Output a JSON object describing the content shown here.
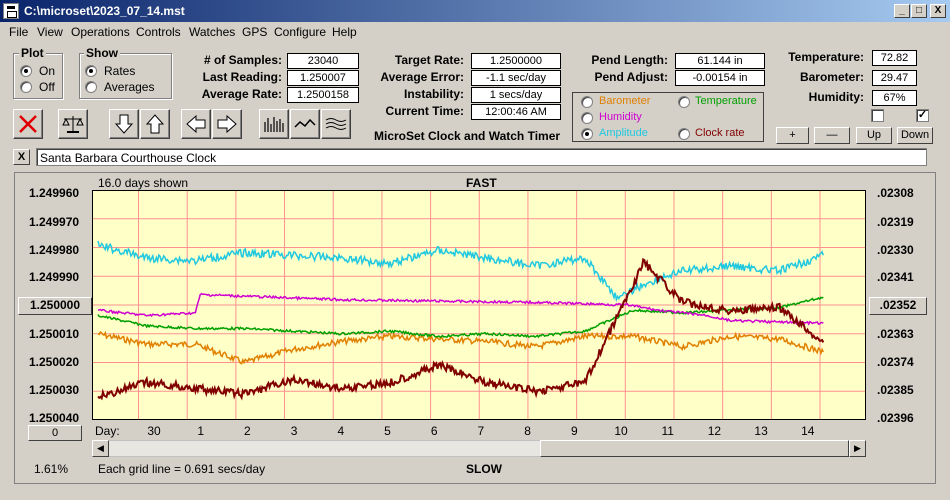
{
  "window": {
    "title": "C:\\microset\\2023_07_14.mst",
    "minimize": "_",
    "maximize": "□",
    "close": "X"
  },
  "menu": [
    "File",
    "View",
    "Operations",
    "Controls",
    "Watches",
    "GPS",
    "Configure",
    "Help"
  ],
  "plot": {
    "title": "Plot",
    "options": [
      "On",
      "Off"
    ],
    "selected": "On"
  },
  "show": {
    "title": "Show",
    "options": [
      "Rates",
      "Averages"
    ],
    "selected": "Rates"
  },
  "stats": {
    "samples_label": "# of Samples:",
    "samples": "23040",
    "last_label": "Last Reading:",
    "last": "1.250007",
    "avg_label": "Average Rate:",
    "avg": "1.2500158"
  },
  "rates": {
    "target_label": "Target Rate:",
    "target": "1.2500000",
    "error_label": "Average Error:",
    "error": "-1.1 sec/day",
    "instab_label": "Instability:",
    "instab": "1 secs/day",
    "time_label": "Current Time:",
    "time": "12:00:46 AM"
  },
  "app_name": "MicroSet Clock and Watch Timer",
  "pend": {
    "length_label": "Pend Length:",
    "length": "61.144 in",
    "adjust_label": "Pend Adjust:",
    "adjust": "-0.00154 in"
  },
  "sensors": {
    "temp_label": "Temperature:",
    "temp": "72.82",
    "baro_label": "Barometer:",
    "baro": "29.47",
    "hum_label": "Humidity:",
    "hum": "67%"
  },
  "series_select": {
    "options": [
      {
        "label": "Barometer",
        "color": "#e08000"
      },
      {
        "label": "Temperature",
        "color": "#00a000"
      },
      {
        "label": "Humidity",
        "color": "#d000d0"
      },
      {
        "label": "Amplitude",
        "color": "#20c8e0"
      },
      {
        "label": "Clock rate",
        "color": "#800000"
      }
    ],
    "selected": "Amplitude"
  },
  "adjust_buttons": [
    "+",
    "—",
    "Up",
    "Down"
  ],
  "checkboxes": [
    {
      "checked": false
    },
    {
      "checked": true
    }
  ],
  "description": {
    "close": "X",
    "value": "Santa Barbara Courthouse Clock"
  },
  "chart": {
    "days_shown": "16.0 days shown",
    "fast": "FAST",
    "slow": "SLOW",
    "reference_btn": "1.250000",
    "zero_btn": "0",
    "right_btn": ".02352",
    "percent": "1.61%",
    "grid_note": "Each grid line = 0.691 secs/day",
    "day_label": "Day:",
    "left_ticks": [
      "1.249960",
      "1.249970",
      "1.249980",
      "1.249990",
      "1.250000",
      "1.250010",
      "1.250020",
      "1.250030",
      "1.250040"
    ],
    "right_ticks": [
      ".02308",
      ".02319",
      ".02330",
      ".02341",
      ".02352",
      ".02363",
      ".02374",
      ".02385",
      ".02396"
    ],
    "day_ticks": [
      "30",
      "1",
      "2",
      "3",
      "4",
      "5",
      "6",
      "7",
      "8",
      "9",
      "10",
      "11",
      "12",
      "13",
      "14"
    ],
    "bg_color": "#ffffc8",
    "grid_color": "#ff9090"
  },
  "chart_data": {
    "type": "line",
    "x_label": "Day",
    "y_range_left": [
      1.24996,
      1.25004
    ],
    "y_range_right": [
      0.02308,
      0.02396
    ],
    "x_range_days": [
      0,
      16
    ],
    "series": [
      {
        "name": "Clock rate",
        "color": "#800000",
        "x": [
          0,
          1,
          2,
          3,
          4,
          5,
          6,
          7,
          8,
          9,
          10,
          11.05,
          11.2,
          12,
          13,
          14,
          14.9
        ],
        "y": [
          1.250032,
          1.250027,
          1.250029,
          1.250031,
          1.250026,
          1.250029,
          1.250027,
          1.250021,
          1.250027,
          1.25003,
          1.250027,
          1.249991,
          1.249985,
          1.249999,
          1.250002,
          1.250001,
          1.250013
        ]
      },
      {
        "name": "Barometer",
        "color": "#e08000",
        "x": [
          0,
          1,
          2,
          3,
          4,
          5,
          6,
          7,
          8,
          9,
          10,
          11,
          12,
          13,
          14,
          14.9
        ],
        "y": [
          0.02363,
          0.02367,
          0.02367,
          0.02374,
          0.02369,
          0.02366,
          0.02364,
          0.02365,
          0.02366,
          0.02368,
          0.02364,
          0.02364,
          0.02368,
          0.02364,
          0.02365,
          0.0237
        ]
      },
      {
        "name": "Temperature",
        "color": "#00a000",
        "x": [
          0,
          1,
          2,
          3,
          4,
          5,
          6,
          7,
          8,
          9,
          10,
          11,
          12,
          13,
          14,
          14.9
        ],
        "y": [
          0.02356,
          0.0236,
          0.02361,
          0.02361,
          0.02362,
          0.02363,
          0.02362,
          0.02364,
          0.02363,
          0.02364,
          0.02362,
          0.02354,
          0.02355,
          0.02354,
          0.02353,
          0.02349
        ]
      },
      {
        "name": "Humidity",
        "color": "#d000d0",
        "x": [
          0,
          1,
          2,
          2.1,
          5,
          9,
          10.9,
          11.5,
          12.5,
          13,
          14.9
        ],
        "y": [
          0.02354,
          0.02356,
          0.02355,
          0.02348,
          0.0235,
          0.02351,
          0.02352,
          0.02354,
          0.02356,
          0.02358,
          0.02359
        ]
      },
      {
        "name": "Amplitude",
        "color": "#20c8e0",
        "x": [
          0,
          1,
          2,
          3,
          4,
          5,
          6,
          7,
          8,
          9,
          10,
          10.7,
          11,
          11.5,
          12,
          13,
          14,
          14.9
        ],
        "y": [
          0.02329,
          0.02334,
          0.02335,
          0.02332,
          0.02333,
          0.02334,
          0.02336,
          0.02331,
          0.02334,
          0.02337,
          0.02334,
          0.0235,
          0.02346,
          0.02342,
          0.02339,
          0.02337,
          0.02339,
          0.02333
        ]
      }
    ]
  }
}
